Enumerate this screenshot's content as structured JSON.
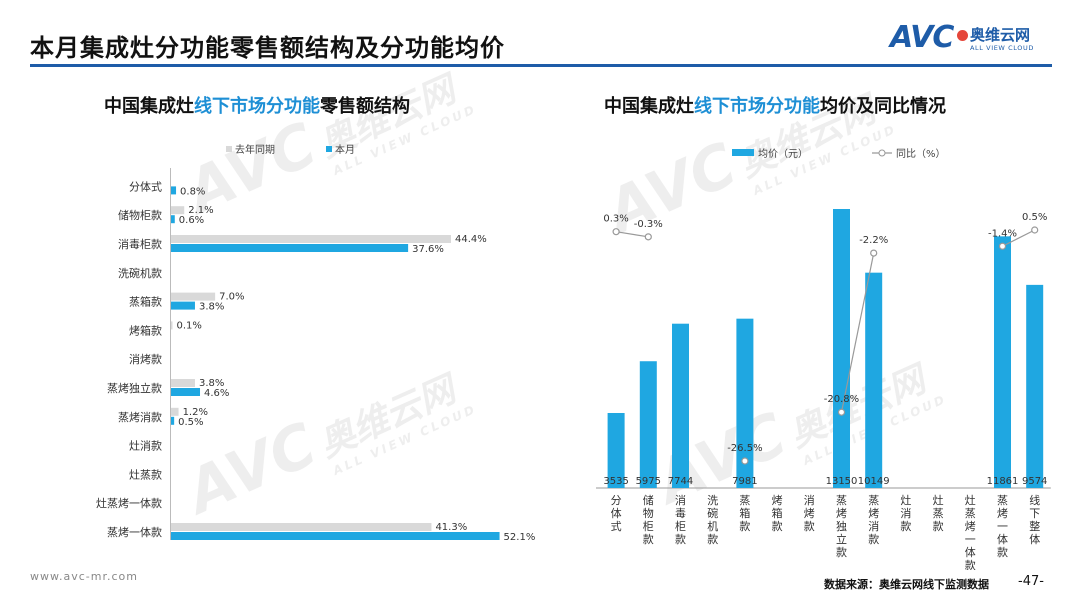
{
  "header": {
    "title": "本月集成灶分功能零售额结构及分功能均价",
    "logo_brand": "AVC",
    "logo_cn": "奥维云网",
    "logo_en": "ALL VIEW CLOUD",
    "accent_color": "#1e5ca8"
  },
  "left_chart": {
    "title_part1": "中国集成灶",
    "title_part2": "线下市场分功能",
    "title_part3": "零售额结构",
    "legend_prev": "去年同期",
    "legend_curr": "本月"
  },
  "right_chart": {
    "title_part1": "中国集成灶",
    "title_part2": "线下市场分功能",
    "title_part3": "均价及同比情况",
    "legend_bar": "均价（元）",
    "legend_line": "同比（%）"
  },
  "watermark": {
    "text": "AVC",
    "cn": "奥维云网",
    "en": "ALL VIEW CLOUD"
  },
  "footer": {
    "url": "www.avc-mr.com",
    "source": "数据来源：奥维云网线下监测数据",
    "page": "-47-"
  },
  "chart_data": [
    {
      "type": "bar",
      "orientation": "horizontal",
      "categories": [
        "分体式",
        "储物柜款",
        "消毒柜款",
        "洗碗机款",
        "蒸箱款",
        "烤箱款",
        "消烤款",
        "蒸烤独立款",
        "蒸烤消款",
        "灶消款",
        "灶蒸款",
        "灶蒸烤一体款",
        "蒸烤一体款"
      ],
      "series": [
        {
          "name": "去年同期",
          "color": "#d9d9d9",
          "values": [
            null,
            2.1,
            44.4,
            null,
            7.0,
            0.1,
            null,
            3.8,
            1.2,
            null,
            null,
            null,
            41.3
          ],
          "labels": [
            "",
            "2.1%",
            "44.4%",
            "",
            "7.0%",
            "0.1%",
            "",
            "3.8%",
            "1.2%",
            "",
            "",
            "",
            "41.3%"
          ]
        },
        {
          "name": "本月",
          "color": "#1fa7e1",
          "values": [
            0.8,
            0.6,
            37.6,
            null,
            3.8,
            null,
            null,
            4.6,
            0.5,
            null,
            null,
            null,
            52.1
          ],
          "labels": [
            "0.8%",
            "0.6%",
            "37.6%",
            "",
            "3.8%",
            "",
            "",
            "4.6%",
            "0.5%",
            "",
            "",
            "",
            "52.1%"
          ]
        }
      ],
      "unit": "%",
      "xlim": [
        0,
        60
      ]
    },
    {
      "type": "bar+line",
      "categories": [
        "分体式",
        "储物柜款",
        "消毒柜款",
        "洗碗机款",
        "蒸箱款",
        "烤箱款",
        "消烤款",
        "蒸烤独立款",
        "蒸烤消款",
        "灶消款",
        "灶蒸款",
        "灶蒸烤一体款",
        "蒸烤一体款",
        "线下整体"
      ],
      "bar_series": {
        "name": "均价（元）",
        "color": "#1fa7e1",
        "values": [
          3535,
          5975,
          7744,
          null,
          7981,
          null,
          null,
          13150,
          10149,
          null,
          null,
          null,
          11861,
          9574
        ]
      },
      "line_series": {
        "name": "同比（%）",
        "color": "#999999",
        "values": [
          0.3,
          -0.3,
          null,
          null,
          -26.5,
          null,
          null,
          -20.8,
          -2.2,
          null,
          null,
          null,
          -1.4,
          0.5
        ],
        "labels": [
          "0.3%",
          "-0.3%",
          "",
          "",
          "-26.5%",
          "",
          "",
          "-20.8%",
          "-2.2%",
          "",
          "",
          "",
          "-1.4%",
          "0.5%"
        ]
      },
      "ylim": [
        0,
        14000
      ]
    }
  ]
}
